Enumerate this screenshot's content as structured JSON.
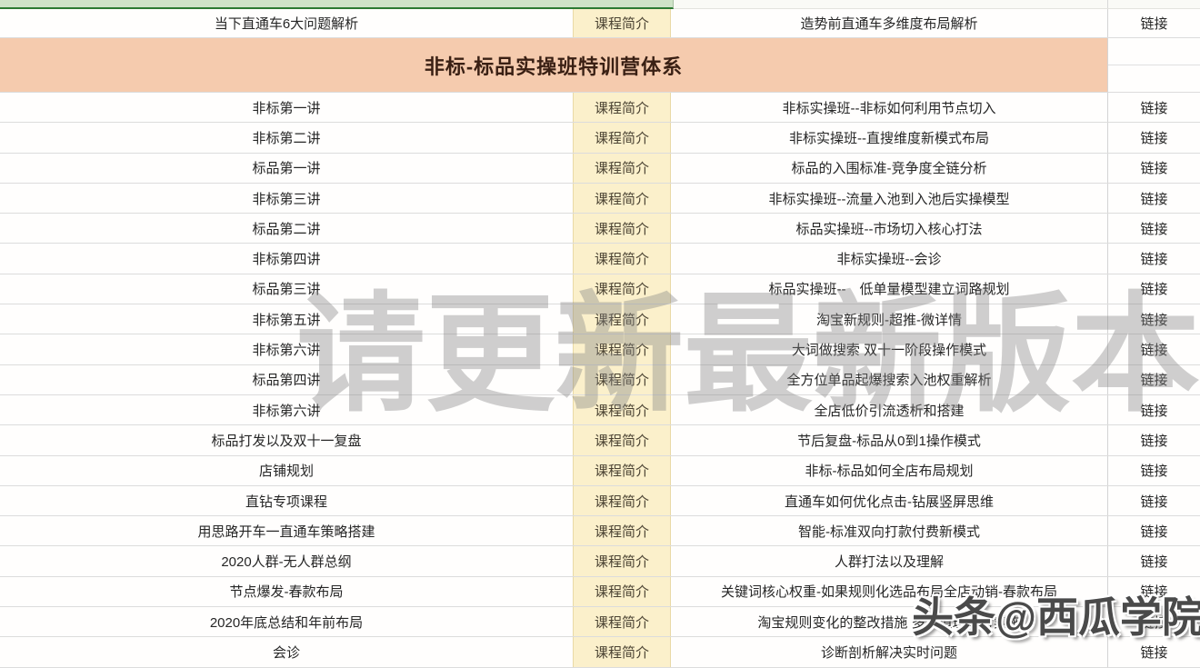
{
  "watermarks": {
    "center": "请更新最新版本",
    "corner": "头条@西瓜学院"
  },
  "table": {
    "columns": {
      "intro": "课程简介",
      "link": "链接"
    },
    "banner": "非标-标品实操班特训营体系",
    "pre_banner_rows": [
      {
        "title": "当下直通车6大问题解析",
        "desc": "造势前直通车多维度布局解析"
      }
    ],
    "rows": [
      {
        "title": "非标第一讲",
        "desc": "非标实操班--非标如何利用节点切入"
      },
      {
        "title": "非标第二讲",
        "desc": "非标实操班--直搜维度新模式布局"
      },
      {
        "title": "标品第一讲",
        "desc": "标品的入围标准-竞争度全链分析"
      },
      {
        "title": "非标第三讲",
        "desc": "非标实操班--流量入池到入池后实操模型"
      },
      {
        "title": "标品第二讲",
        "desc": "标品实操班--市场切入核心打法"
      },
      {
        "title": "非标第四讲",
        "desc": "非标实操班--会诊"
      },
      {
        "title": "标品第三讲",
        "desc": "标品实操班--　低单量模型建立词路规划"
      },
      {
        "title": "非标第五讲",
        "desc": "淘宝新规则-超推-微详情"
      },
      {
        "title": "非标第六讲",
        "desc": "大词做搜索 双十一阶段操作模式"
      },
      {
        "title": "标品第四讲",
        "desc": "全方位单品起爆搜索入池权重解析"
      },
      {
        "title": "非标第六讲",
        "desc": "全店低价引流透析和搭建"
      },
      {
        "title": "标品打发以及双十一复盘",
        "desc": "节后复盘-标品从0到1操作模式"
      },
      {
        "title": "店铺规划",
        "desc": "非标-标品如何全店布局规划"
      },
      {
        "title": "直钻专项课程",
        "desc": "直通车如何优化点击-钻展竖屏思维"
      },
      {
        "title": "用思路开车一直通车策略搭建",
        "desc": "智能-标准双向打款付费新模式"
      },
      {
        "title": "2020人群-无人群总纲",
        "desc": "人群打法以及理解"
      },
      {
        "title": "节点爆发-春款布局",
        "desc": "关键词核心权重-如果规则化选品布局全店动销-春款布局"
      },
      {
        "title": "2020年底总结和年前布局",
        "desc": "淘宝规则变化的整改措施 多渠道理念与实施"
      },
      {
        "title": "会诊",
        "desc": "诊断剖析解决实时问题"
      }
    ]
  },
  "colors": {
    "banner_bg": "#f5cbae",
    "intro_col_bg": "#fbf0cb",
    "top_strip_green": "#cfe3c8",
    "top_strip_border": "#2c7a33",
    "grid_line": "#dcdcdc",
    "watermark_gray": "#828282"
  }
}
